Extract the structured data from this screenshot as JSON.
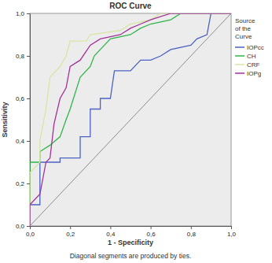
{
  "chart_data": {
    "type": "line",
    "title": "ROC Curve",
    "x_label": "1 - Specificity",
    "y_label": "Sensitivity",
    "legend_title": "Source of the Curve",
    "note": "Diagonal segments are produced by ties.",
    "legend": "right",
    "grid": false,
    "xlim": [
      0,
      1
    ],
    "ylim": [
      0,
      1
    ],
    "xticks": [
      {
        "value": 0,
        "label": "0,0"
      },
      {
        "value": 0.2,
        "label": "0,2"
      },
      {
        "value": 0.4,
        "label": "0,4"
      },
      {
        "value": 0.6,
        "label": "0,6"
      },
      {
        "value": 0.8,
        "label": "0,8"
      },
      {
        "value": 1,
        "label": "1,0"
      }
    ],
    "yticks": [
      {
        "value": 0,
        "label": "0,0"
      },
      {
        "value": 0.2,
        "label": "0,2"
      },
      {
        "value": 0.4,
        "label": "0,4"
      },
      {
        "value": 0.6,
        "label": "0,6"
      },
      {
        "value": 0.8,
        "label": "0,8"
      },
      {
        "value": 1,
        "label": "1,0"
      }
    ],
    "series": [
      {
        "name": "IOPcc",
        "color": "#4a63c2",
        "x": [
          0,
          0,
          0.05,
          0.05,
          0.15,
          0.15,
          0.25,
          0.25,
          0.3,
          0.3,
          0.35,
          0.35,
          0.4,
          0.42,
          0.5,
          0.55,
          0.6,
          0.65,
          0.7,
          0.8,
          0.83,
          0.88,
          0.9,
          1
        ],
        "values": [
          0,
          0.1,
          0.1,
          0.3,
          0.3,
          0.32,
          0.32,
          0.42,
          0.42,
          0.55,
          0.55,
          0.6,
          0.6,
          0.73,
          0.73,
          0.78,
          0.78,
          0.8,
          0.83,
          0.85,
          0.88,
          0.9,
          1,
          1
        ]
      },
      {
        "name": "CH",
        "color": "#2fb548",
        "x": [
          0,
          0,
          0.05,
          0.05,
          0.1,
          0.15,
          0.18,
          0.2,
          0.25,
          0.3,
          0.32,
          0.35,
          0.4,
          0.5,
          0.55,
          0.6,
          0.7,
          0.75,
          1
        ],
        "values": [
          0,
          0.3,
          0.3,
          0.35,
          0.38,
          0.42,
          0.5,
          0.55,
          0.7,
          0.75,
          0.8,
          0.83,
          0.88,
          0.9,
          0.93,
          0.95,
          0.97,
          1,
          1
        ]
      },
      {
        "name": "CRF",
        "color": "#d6e6a2",
        "x": [
          0,
          0,
          0.05,
          0.05,
          0.08,
          0.1,
          0.15,
          0.18,
          0.2,
          0.28,
          0.3,
          0.45,
          0.5,
          0.6,
          0.65,
          1
        ],
        "values": [
          0,
          0.25,
          0.3,
          0.4,
          0.55,
          0.7,
          0.75,
          0.8,
          0.87,
          0.87,
          0.9,
          0.92,
          0.95,
          0.97,
          1,
          1
        ]
      },
      {
        "name": "IOPg",
        "color": "#a3329a",
        "x": [
          0,
          0,
          0.05,
          0.08,
          0.1,
          0.12,
          0.15,
          0.18,
          0.2,
          0.25,
          0.3,
          0.35,
          0.45,
          0.5,
          0.55,
          0.6,
          0.7,
          1
        ],
        "values": [
          0,
          0.1,
          0.15,
          0.3,
          0.32,
          0.48,
          0.6,
          0.65,
          0.75,
          0.78,
          0.85,
          0.88,
          0.9,
          0.93,
          0.95,
          0.97,
          1,
          1
        ]
      }
    ]
  }
}
